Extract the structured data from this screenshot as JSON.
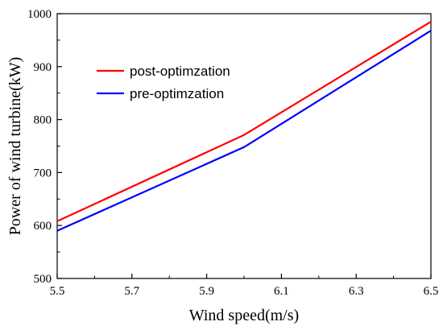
{
  "chart_data": {
    "type": "line",
    "xlabel": "Wind speed(m/s)",
    "ylabel": "Power of wind turbine(kW)",
    "xlim": [
      5.5,
      6.5
    ],
    "ylim": [
      500,
      1000
    ],
    "xticks": [
      5.5,
      5.7,
      5.9,
      6.1,
      6.3,
      6.5
    ],
    "yticks": [
      500,
      600,
      700,
      800,
      900,
      1000
    ],
    "grid": false,
    "legend": "top-left",
    "series": [
      {
        "name": "post-optimzation",
        "color": "#ff0000",
        "x": [
          5.5,
          6.0,
          6.5
        ],
        "y": [
          608,
          771,
          985
        ]
      },
      {
        "name": "pre-optimzation",
        "color": "#0000ff",
        "x": [
          5.5,
          6.0,
          6.5
        ],
        "y": [
          590,
          748,
          968
        ]
      }
    ]
  }
}
